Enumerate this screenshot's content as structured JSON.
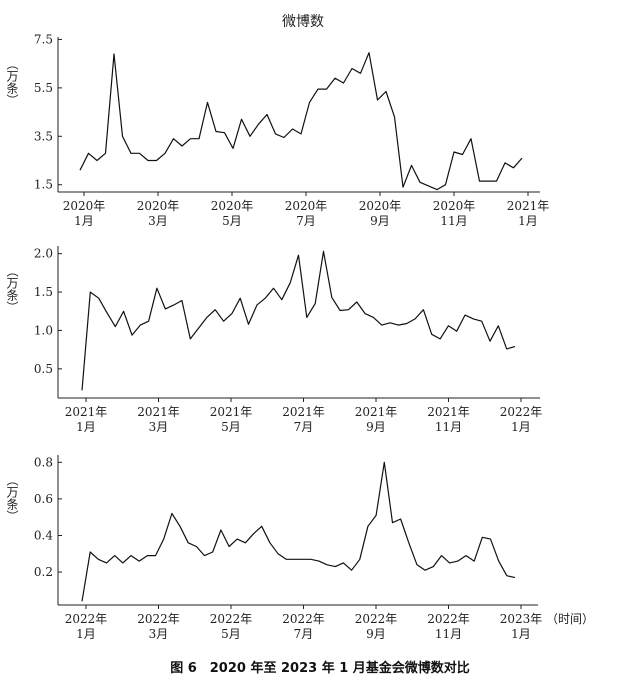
{
  "figure": {
    "title": "微博数",
    "caption": "图 6　2020 年至 2023 年 1 月基金会微博数对比"
  },
  "chart_data": [
    {
      "type": "line",
      "ylabel": "（万条）",
      "xlabel": "",
      "ylim": [
        1.2,
        7.6
      ],
      "yticks": [
        1.5,
        3.5,
        5.5,
        7.5
      ],
      "ytick_labels": [
        "1.5",
        "3.5",
        "5.5",
        "7.5"
      ],
      "xticks": [
        {
          "line1": "2020年",
          "line2": "1月"
        },
        {
          "line1": "2020年",
          "line2": "3月"
        },
        {
          "line1": "2020年",
          "line2": "5月"
        },
        {
          "line1": "2020年",
          "line2": "7月"
        },
        {
          "line1": "2020年",
          "line2": "9月"
        },
        {
          "line1": "2020年",
          "line2": "11月"
        },
        {
          "line1": "2021年",
          "line2": "1月"
        }
      ],
      "series": [
        {
          "values": [
            2.1,
            2.8,
            2.5,
            2.8,
            6.9,
            3.5,
            2.8,
            2.8,
            2.5,
            2.5,
            2.8,
            3.4,
            3.1,
            3.4,
            3.4,
            4.9,
            3.7,
            3.65,
            3.0,
            4.2,
            3.5,
            4.0,
            4.4,
            3.6,
            3.45,
            3.8,
            3.6,
            4.9,
            5.45,
            5.45,
            5.9,
            5.7,
            6.3,
            6.1,
            6.95,
            5.0,
            5.35,
            4.3,
            1.4,
            2.3,
            1.6,
            1.45,
            1.3,
            1.5,
            2.85,
            2.75,
            3.4,
            1.65,
            1.65,
            1.65,
            2.4,
            2.2,
            2.6
          ]
        }
      ]
    },
    {
      "type": "line",
      "ylabel": "（万条）",
      "xlabel": "",
      "ylim": [
        0.12,
        2.1
      ],
      "yticks": [
        0.5,
        1.0,
        1.5,
        2.0
      ],
      "ytick_labels": [
        "0.5",
        "1.0",
        "1.5",
        "2.0"
      ],
      "xticks": [
        {
          "line1": "2021年",
          "line2": "1月"
        },
        {
          "line1": "2021年",
          "line2": "3月"
        },
        {
          "line1": "2021年",
          "line2": "5月"
        },
        {
          "line1": "2021年",
          "line2": "7月"
        },
        {
          "line1": "2021年",
          "line2": "9月"
        },
        {
          "line1": "2021年",
          "line2": "11月"
        },
        {
          "line1": "2022年",
          "line2": "1月"
        }
      ],
      "series": [
        {
          "values": [
            0.22,
            1.5,
            1.42,
            1.23,
            1.05,
            1.25,
            0.94,
            1.07,
            1.12,
            1.55,
            1.28,
            1.33,
            1.39,
            0.89,
            1.03,
            1.17,
            1.27,
            1.12,
            1.22,
            1.42,
            1.08,
            1.33,
            1.42,
            1.55,
            1.4,
            1.62,
            1.98,
            1.17,
            1.35,
            2.03,
            1.43,
            1.26,
            1.27,
            1.37,
            1.22,
            1.17,
            1.07,
            1.1,
            1.07,
            1.09,
            1.15,
            1.27,
            0.95,
            0.89,
            1.06,
            0.99,
            1.2,
            1.15,
            1.12,
            0.86,
            1.06,
            0.76,
            0.79
          ]
        }
      ]
    },
    {
      "type": "line",
      "ylabel": "（万条）",
      "xlabel": "（时间）",
      "ylim": [
        0.02,
        0.84
      ],
      "yticks": [
        0.2,
        0.4,
        0.6,
        0.8
      ],
      "ytick_labels": [
        "0.2",
        "0.4",
        "0.6",
        "0.8"
      ],
      "xticks": [
        {
          "line1": "2022年",
          "line2": "1月"
        },
        {
          "line1": "2022年",
          "line2": "3月"
        },
        {
          "line1": "2022年",
          "line2": "5月"
        },
        {
          "line1": "2022年",
          "line2": "7月"
        },
        {
          "line1": "2022年",
          "line2": "9月"
        },
        {
          "line1": "2022年",
          "line2": "11月"
        },
        {
          "line1": "2023年",
          "line2": "1月"
        }
      ],
      "series": [
        {
          "values": [
            0.04,
            0.31,
            0.27,
            0.25,
            0.29,
            0.25,
            0.29,
            0.26,
            0.29,
            0.29,
            0.38,
            0.52,
            0.45,
            0.36,
            0.34,
            0.29,
            0.31,
            0.43,
            0.34,
            0.38,
            0.36,
            0.41,
            0.45,
            0.36,
            0.3,
            0.27,
            0.27,
            0.27,
            0.27,
            0.26,
            0.24,
            0.23,
            0.25,
            0.21,
            0.27,
            0.45,
            0.51,
            0.8,
            0.47,
            0.49,
            0.36,
            0.24,
            0.21,
            0.23,
            0.29,
            0.25,
            0.26,
            0.29,
            0.26,
            0.39,
            0.38,
            0.26,
            0.18,
            0.17
          ]
        }
      ]
    }
  ]
}
